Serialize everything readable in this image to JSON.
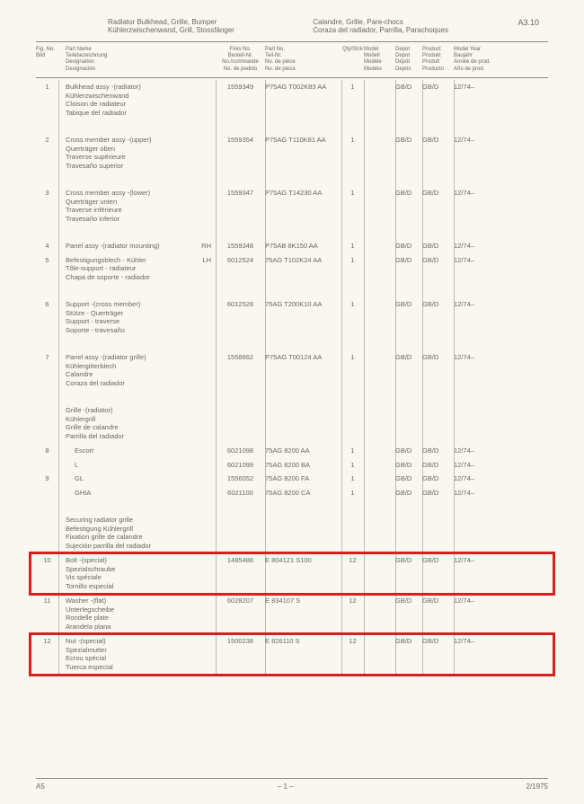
{
  "header": {
    "title_en": "Radiator Bulkhead, Grille, Bumper",
    "title_de": "Kühlerzwischenwand, Grill, Stossfänger",
    "title_fr": "Calandre, Grille, Pare-chocs",
    "title_es": "Coraza del radiador, Parrilla, Parachoques",
    "section": "A3.10"
  },
  "colheads": {
    "fig": "Fig. No.\nBild",
    "name": "Part Name\nTeilebezeichnung\nDesignation\nDesignación",
    "finis": "Finis No.\nBestell-Nr.\nNo./commande\nNo. de pedido",
    "part": "Part No.\nTeil-Nr.\nNo. de pièce\nNo. de pieza",
    "qty": "Qty/Stck",
    "model": "Model\nModell\nModèle\nModelo",
    "depot": "Depot\nDepot\nDépôt\nDepós",
    "product": "Product\nProdukt\nProduit\nProducto",
    "year": "Model Year\nBaujahr\nAnnée de prod.\nAño de prod."
  },
  "rows": [
    {
      "fig": "1",
      "name": [
        "Bulkhead assy -(radiator)",
        "Kühlerzwischenwand",
        "Cloison de radiateur",
        "Tabique del radiador"
      ],
      "finis": "1559349",
      "part": "P75AG T002K83 AA",
      "qty": "1",
      "depot": "GB/D",
      "product": "GB/D",
      "year": "12/74–"
    },
    {
      "spacer": true
    },
    {
      "fig": "2",
      "name": [
        "Cross member assy -(upper)",
        "Querträger oben",
        "Traverse supérieure",
        "Travesaño superior"
      ],
      "finis": "1559354",
      "part": "P75AG T110K81 AA",
      "qty": "1",
      "depot": "GB/D",
      "product": "GB/D",
      "year": "12/74–"
    },
    {
      "spacer": true
    },
    {
      "fig": "3",
      "name": [
        "Cross member assy -(lower)",
        "Querträger unten",
        "Traverse inférieure",
        "Travesaño inferior"
      ],
      "finis": "1559347",
      "part": "P75AG T14230 AA",
      "qty": "1",
      "depot": "GB/D",
      "product": "GB/D",
      "year": "12/74–"
    },
    {
      "spacer": true
    },
    {
      "fig": "4",
      "name": [
        "Panel assy -(radiator mounting)"
      ],
      "rhlh": "RH",
      "finis": "1559348",
      "part": "P75AB 8K150 AA",
      "qty": "1",
      "depot": "GB/D",
      "product": "GB/D",
      "year": "12/74–"
    },
    {
      "fig": "5",
      "name": [
        "Befestigungsblech - Kühler",
        "Tôle-support - radiateur",
        "Chapa de soporte - radiador"
      ],
      "rhlh": "LH",
      "finis": "6012524",
      "part": "75AG T102K24 AA",
      "qty": "1",
      "depot": "GB/D",
      "product": "GB/D",
      "year": "12/74–"
    },
    {
      "spacer": true
    },
    {
      "fig": "6",
      "name": [
        "Support -(cross member)",
        "Stütze - Querträger",
        "Support - traverse",
        "Soporte - travesaño"
      ],
      "finis": "6012528",
      "part": "75AG T200K10 AA",
      "qty": "1",
      "depot": "GB/D",
      "product": "GB/D",
      "year": "12/74–"
    },
    {
      "spacer": true
    },
    {
      "fig": "7",
      "name": [
        "Panel assy -(radiator grille)",
        "Kühlergitterblech",
        "Calandre",
        "Coraza del radiador"
      ],
      "finis": "1558862",
      "part": "P75AG T00124 AA",
      "qty": "1",
      "depot": "GB/D",
      "product": "GB/D",
      "year": "12/74–"
    },
    {
      "spacer": true
    },
    {
      "fig": "",
      "name": [
        "Grille -(radiator)",
        "Kühlergrill",
        "Grille de calandre",
        "Parrilla del radiador"
      ]
    },
    {
      "fig": "8",
      "indent": true,
      "name": [
        "Escort"
      ],
      "finis": "6021098",
      "part": "75AG 8200 AA",
      "qty": "1",
      "depot": "GB/D",
      "product": "GB/D",
      "year": "12/74–"
    },
    {
      "fig": "",
      "indent": true,
      "name": [
        "L"
      ],
      "finis": "6021099",
      "part": "75AG 8200 BA",
      "qty": "1",
      "depot": "GB/D",
      "product": "GB/D",
      "year": "12/74–"
    },
    {
      "fig": "9",
      "indent": true,
      "name": [
        "GL"
      ],
      "finis": "1556052",
      "part": "75AG 8200 FA",
      "qty": "1",
      "depot": "GB/D",
      "product": "GB/D",
      "year": "12/74–"
    },
    {
      "fig": "",
      "indent": true,
      "name": [
        "GHIA"
      ],
      "finis": "6021100",
      "part": "75AG 8200 CA",
      "qty": "1",
      "depot": "GB/D",
      "product": "GB/D",
      "year": "12/74–"
    },
    {
      "spacer": true
    },
    {
      "fig": "",
      "name": [
        "Securing radiator grille",
        "Befestigung Kühlergrill",
        "Fixation grille de calandre",
        "Sujeción parrilla del radiador"
      ]
    },
    {
      "fig": "10",
      "highlight": true,
      "name": [
        "Bolt -(special)",
        "Spezialschraube",
        "Vis spéciale",
        "Tornillo especial"
      ],
      "finis": "1485488",
      "part": "E 804121 S100",
      "qty": "12",
      "depot": "GB/D",
      "product": "GB/D",
      "year": "12/74–"
    },
    {
      "fig": "11",
      "name": [
        "Washer -(flat)",
        "Unterlegscheibe",
        "Rondelle plate",
        "Arandela plana"
      ],
      "finis": "6028207",
      "part": "E 834107 S",
      "qty": "12",
      "depot": "GB/D",
      "product": "GB/D",
      "year": "12/74–"
    },
    {
      "fig": "12",
      "highlight": true,
      "name": [
        "Nut -(special)",
        "Spezialmutter",
        "Ecrou spécial",
        "Tuerca especial"
      ],
      "finis": "1500238",
      "part": "E 826110 S",
      "qty": "12",
      "depot": "GB/D",
      "product": "GB/D",
      "year": "12/74–"
    }
  ],
  "footer": {
    "left": "A5",
    "center": "– 1 –",
    "right": "2/1975"
  },
  "style": {
    "highlight_color": "#d81e1e",
    "bg_color": "#f9f7f0",
    "text_color": "#6b6560"
  }
}
